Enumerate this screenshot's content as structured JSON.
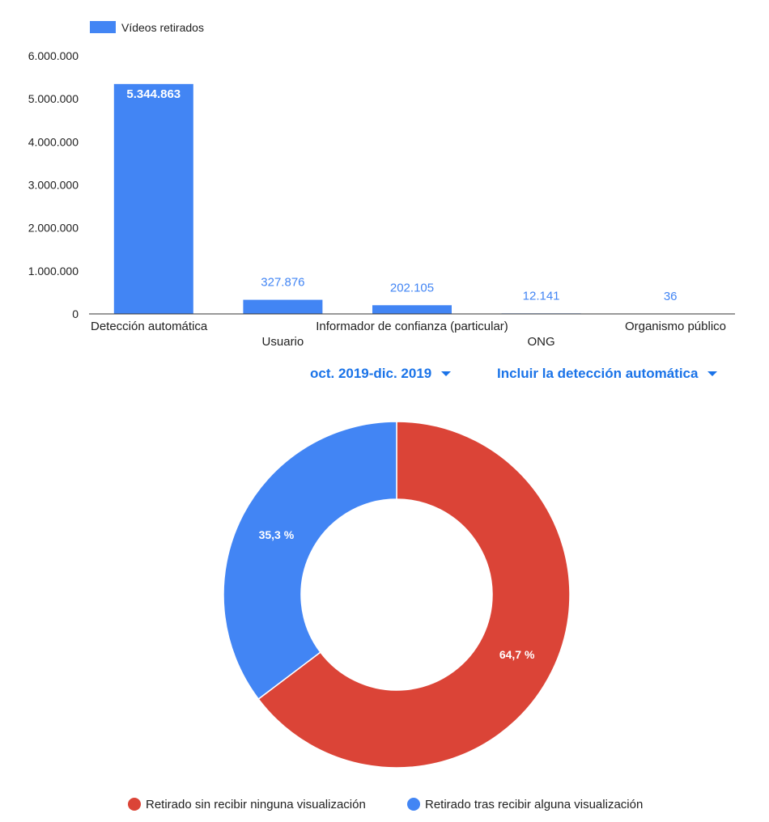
{
  "chart_data": [
    {
      "type": "bar",
      "categories": [
        "Detección automática",
        "Usuario",
        "Informador de confianza (particular)",
        "ONG",
        "Organismo público"
      ],
      "series": [
        {
          "name": "Vídeos retirados",
          "values": [
            5344863,
            327876,
            202105,
            12141,
            36
          ]
        }
      ],
      "data_labels": [
        "5.344.863",
        "327.876",
        "202.105",
        "12.141",
        "36"
      ],
      "y_ticks": [
        "0",
        "1.000.000",
        "2.000.000",
        "3.000.000",
        "4.000.000",
        "5.000.000",
        "6.000.000"
      ],
      "ylim": [
        0,
        6000000
      ],
      "legend": "top-left",
      "color": "#4285f4",
      "grid": false
    },
    {
      "type": "pie",
      "donut": true,
      "slices": [
        {
          "name": "Retirado sin recibir ninguna visualización",
          "value": 64.7,
          "label": "64,7 %",
          "color": "#db4437"
        },
        {
          "name": "Retirado tras recibir alguna visualización",
          "value": 35.3,
          "label": "35,3 %",
          "color": "#4285f4"
        }
      ],
      "legend": "bottom"
    }
  ],
  "filters": {
    "period": "oct. 2019-dic. 2019",
    "detection": "Incluir la detección automática"
  }
}
